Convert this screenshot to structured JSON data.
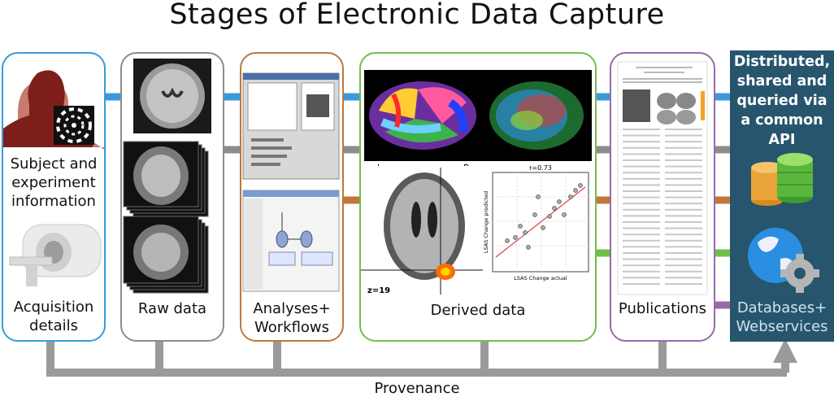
{
  "title": "Stages of Electronic Data Capture",
  "stages": {
    "acquisition": {
      "top_line1": "Subject and",
      "top_line2": "experiment",
      "top_line3": "information",
      "bottom_line1": "Acquisition",
      "bottom_line2": "details"
    },
    "raw": {
      "label": "Raw data"
    },
    "analyses": {
      "line1": "Analyses+",
      "line2": "Workflows"
    },
    "derived": {
      "label": "Derived data",
      "left_marker": "L",
      "right_marker": "R",
      "slice_label": "z=19",
      "scatter_title": "r=0.73",
      "scatter_xlabel": "LSAS Change actual",
      "scatter_ylabel": "LSAS Change predicted"
    },
    "publications": {
      "label": "Publications"
    },
    "databases": {
      "top_line1": "Distributed,",
      "top_line2": "shared and",
      "top_line3": "queried via",
      "top_line4": "a common",
      "top_line5": "API",
      "bottom_line1": "Databases+",
      "bottom_line2": "Webservices"
    }
  },
  "provenance": "Provenance",
  "colors": {
    "blue": "#3a9ad9",
    "gray": "#8c8c8c",
    "orange": "#c0773a",
    "green": "#6fbf4a",
    "purple": "#9a6aa8",
    "db_bg": "#27556e"
  }
}
